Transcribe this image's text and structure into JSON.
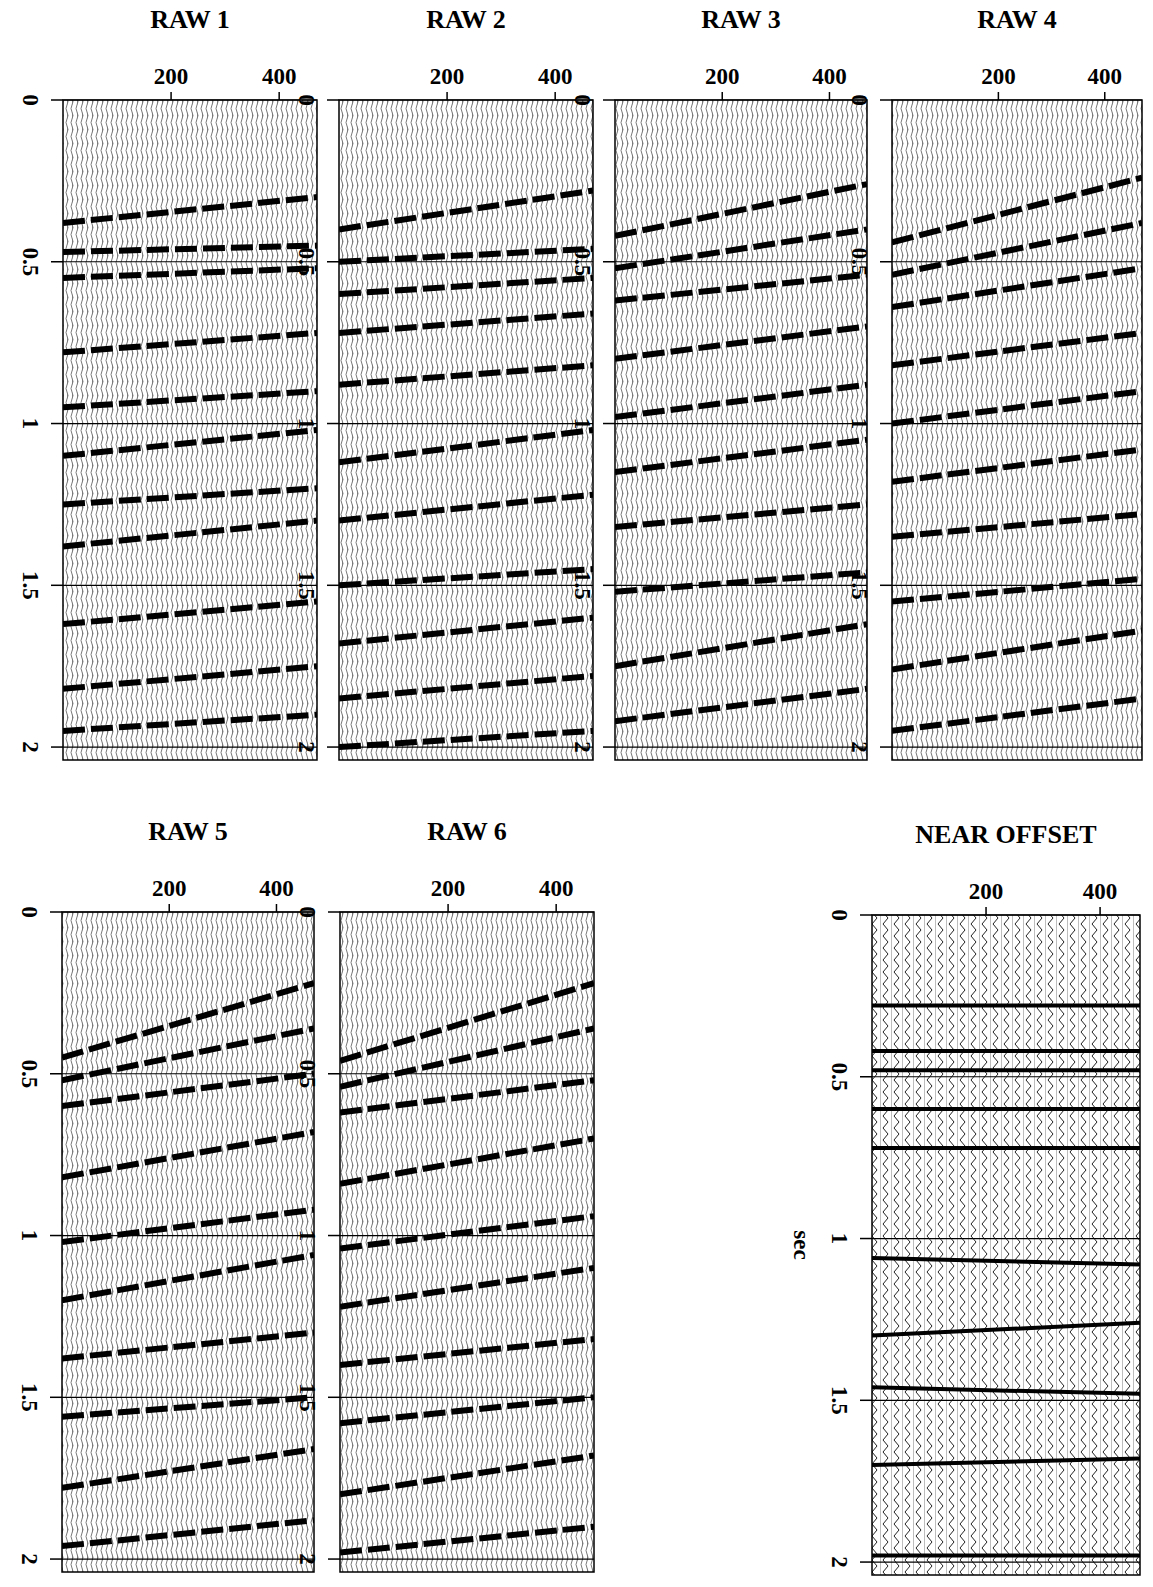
{
  "chart_data": [
    {
      "type": "variable_area",
      "title": "RAW 1",
      "xlim": [
        0,
        470
      ],
      "xticks": [
        200,
        400
      ],
      "ylim": [
        0,
        2.04
      ],
      "yticks": [
        0,
        0.5,
        1,
        1.5,
        2
      ],
      "grid": true,
      "events": [
        {
          "t0": 0.38,
          "t1": 0.3
        },
        {
          "t0": 0.47,
          "t1": 0.45
        },
        {
          "t0": 0.55,
          "t1": 0.52
        },
        {
          "t0": 0.78,
          "t1": 0.72
        },
        {
          "t0": 0.95,
          "t1": 0.9
        },
        {
          "t0": 1.1,
          "t1": 1.02
        },
        {
          "t0": 1.25,
          "t1": 1.2
        },
        {
          "t0": 1.38,
          "t1": 1.3
        },
        {
          "t0": 1.62,
          "t1": 1.55
        },
        {
          "t0": 1.82,
          "t1": 1.75
        },
        {
          "t0": 1.95,
          "t1": 1.9
        }
      ]
    },
    {
      "type": "variable_area",
      "title": "RAW 2",
      "xlim": [
        0,
        470
      ],
      "xticks": [
        200,
        400
      ],
      "ylim": [
        0,
        2.04
      ],
      "yticks": [
        0,
        0.5,
        1,
        1.5,
        2
      ],
      "grid": true,
      "events": [
        {
          "t0": 0.4,
          "t1": 0.28
        },
        {
          "t0": 0.5,
          "t1": 0.46
        },
        {
          "t0": 0.6,
          "t1": 0.55
        },
        {
          "t0": 0.72,
          "t1": 0.66
        },
        {
          "t0": 0.88,
          "t1": 0.82
        },
        {
          "t0": 1.12,
          "t1": 1.02
        },
        {
          "t0": 1.3,
          "t1": 1.22
        },
        {
          "t0": 1.5,
          "t1": 1.45
        },
        {
          "t0": 1.68,
          "t1": 1.6
        },
        {
          "t0": 1.85,
          "t1": 1.78
        },
        {
          "t0": 2.0,
          "t1": 1.95
        }
      ]
    },
    {
      "type": "variable_area",
      "title": "RAW 3",
      "xlim": [
        0,
        470
      ],
      "xticks": [
        200,
        400
      ],
      "ylim": [
        0,
        2.04
      ],
      "yticks": [
        0,
        0.5,
        1,
        1.5,
        2
      ],
      "grid": true,
      "events": [
        {
          "t0": 0.42,
          "t1": 0.26
        },
        {
          "t0": 0.52,
          "t1": 0.4
        },
        {
          "t0": 0.62,
          "t1": 0.54
        },
        {
          "t0": 0.8,
          "t1": 0.7
        },
        {
          "t0": 0.98,
          "t1": 0.88
        },
        {
          "t0": 1.15,
          "t1": 1.05
        },
        {
          "t0": 1.32,
          "t1": 1.25
        },
        {
          "t0": 1.52,
          "t1": 1.46
        },
        {
          "t0": 1.75,
          "t1": 1.62
        },
        {
          "t0": 1.92,
          "t1": 1.82
        }
      ]
    },
    {
      "type": "variable_area",
      "title": "RAW 4",
      "xlim": [
        0,
        470
      ],
      "xticks": [
        200,
        400
      ],
      "ylim": [
        0,
        2.04
      ],
      "yticks": [
        0,
        0.5,
        1,
        1.5,
        2
      ],
      "grid": true,
      "events": [
        {
          "t0": 0.44,
          "t1": 0.24
        },
        {
          "t0": 0.54,
          "t1": 0.38
        },
        {
          "t0": 0.64,
          "t1": 0.52
        },
        {
          "t0": 0.82,
          "t1": 0.72
        },
        {
          "t0": 1.0,
          "t1": 0.9
        },
        {
          "t0": 1.18,
          "t1": 1.08
        },
        {
          "t0": 1.35,
          "t1": 1.28
        },
        {
          "t0": 1.55,
          "t1": 1.48
        },
        {
          "t0": 1.76,
          "t1": 1.64
        },
        {
          "t0": 1.95,
          "t1": 1.85
        }
      ]
    },
    {
      "type": "variable_area",
      "title": "RAW 5",
      "xlim": [
        0,
        470
      ],
      "xticks": [
        200,
        400
      ],
      "ylim": [
        0,
        2.04
      ],
      "yticks": [
        0,
        0.5,
        1,
        1.5,
        2
      ],
      "grid": true,
      "events": [
        {
          "t0": 0.45,
          "t1": 0.22
        },
        {
          "t0": 0.52,
          "t1": 0.36
        },
        {
          "t0": 0.6,
          "t1": 0.5
        },
        {
          "t0": 0.82,
          "t1": 0.68
        },
        {
          "t0": 1.02,
          "t1": 0.92
        },
        {
          "t0": 1.2,
          "t1": 1.06
        },
        {
          "t0": 1.38,
          "t1": 1.3
        },
        {
          "t0": 1.56,
          "t1": 1.5
        },
        {
          "t0": 1.78,
          "t1": 1.66
        },
        {
          "t0": 1.96,
          "t1": 1.88
        }
      ]
    },
    {
      "type": "variable_area",
      "title": "RAW 6",
      "xlim": [
        0,
        470
      ],
      "xticks": [
        200,
        400
      ],
      "ylim": [
        0,
        2.04
      ],
      "yticks": [
        0,
        0.5,
        1,
        1.5,
        2
      ],
      "grid": true,
      "events": [
        {
          "t0": 0.46,
          "t1": 0.22
        },
        {
          "t0": 0.54,
          "t1": 0.36
        },
        {
          "t0": 0.62,
          "t1": 0.52
        },
        {
          "t0": 0.84,
          "t1": 0.7
        },
        {
          "t0": 1.04,
          "t1": 0.94
        },
        {
          "t0": 1.22,
          "t1": 1.1
        },
        {
          "t0": 1.4,
          "t1": 1.32
        },
        {
          "t0": 1.58,
          "t1": 1.5
        },
        {
          "t0": 1.8,
          "t1": 1.68
        },
        {
          "t0": 1.98,
          "t1": 1.9
        }
      ]
    },
    {
      "type": "wiggle",
      "title": "NEAR OFFSET",
      "y_label": "sec",
      "xlim": [
        0,
        470
      ],
      "xticks": [
        200,
        400
      ],
      "ylim": [
        0,
        2.04
      ],
      "yticks": [
        0,
        0.5,
        1,
        1.5,
        2
      ],
      "grid": true,
      "events": [
        {
          "t0": 0.28,
          "t1": 0.28
        },
        {
          "t0": 0.42,
          "t1": 0.42
        },
        {
          "t0": 0.48,
          "t1": 0.48
        },
        {
          "t0": 0.6,
          "t1": 0.6
        },
        {
          "t0": 0.72,
          "t1": 0.72
        },
        {
          "t0": 1.06,
          "t1": 1.08
        },
        {
          "t0": 1.3,
          "t1": 1.26
        },
        {
          "t0": 1.46,
          "t1": 1.48
        },
        {
          "t0": 1.7,
          "t1": 1.68
        },
        {
          "t0": 1.98,
          "t1": 1.98
        }
      ]
    }
  ]
}
